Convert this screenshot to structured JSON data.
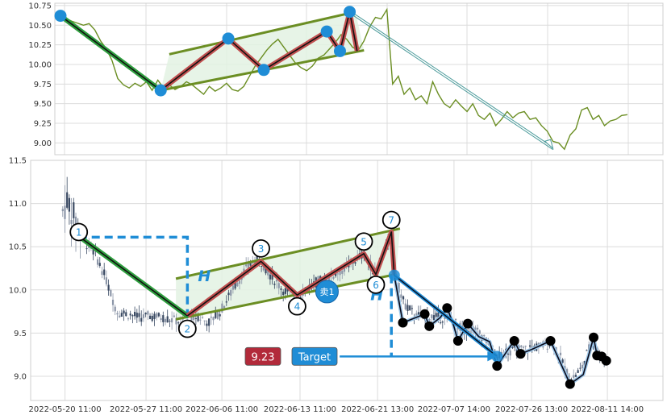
{
  "chart_data": [
    {
      "type": "line",
      "panel": "top-overview",
      "ylim": [
        8.85,
        10.78
      ],
      "yticks": [
        "10.75",
        "10.50",
        "10.25",
        "10.00",
        "9.75",
        "9.50",
        "9.25",
        "9.00"
      ],
      "ytick_values": [
        10.75,
        10.5,
        10.25,
        10.0,
        9.75,
        9.5,
        9.25,
        9.0
      ],
      "xlim": [
        0,
        100
      ],
      "grid": true,
      "colors": {
        "price": "#6b8e23",
        "channel": "#6b8e23",
        "channel_fill": "#e3f2e3",
        "zigzag": "#c05050",
        "downtrend": "#2e9e3e",
        "pivot": "#1f8dd6",
        "projection": "#4a9a9a"
      },
      "price_series": [
        [
          0,
          10.62
        ],
        [
          2,
          10.55
        ],
        [
          4,
          10.5
        ],
        [
          5,
          10.52
        ],
        [
          6,
          10.44
        ],
        [
          7,
          10.3
        ],
        [
          8,
          10.2
        ],
        [
          9,
          10.05
        ],
        [
          10,
          9.82
        ],
        [
          11,
          9.74
        ],
        [
          12,
          9.7
        ],
        [
          13,
          9.76
        ],
        [
          14,
          9.72
        ],
        [
          15,
          9.78
        ],
        [
          16,
          9.67
        ],
        [
          17,
          9.8
        ],
        [
          18,
          9.7
        ],
        [
          19,
          9.74
        ],
        [
          20,
          9.68
        ],
        [
          21,
          9.72
        ],
        [
          22,
          9.78
        ],
        [
          23,
          9.74
        ],
        [
          24,
          9.68
        ],
        [
          25,
          9.62
        ],
        [
          26,
          9.72
        ],
        [
          27,
          9.66
        ],
        [
          28,
          9.7
        ],
        [
          29,
          9.76
        ],
        [
          30,
          9.68
        ],
        [
          31,
          9.66
        ],
        [
          32,
          9.72
        ],
        [
          33,
          9.85
        ],
        [
          34,
          9.98
        ],
        [
          35,
          10.08
        ],
        [
          36,
          10.18
        ],
        [
          37,
          10.26
        ],
        [
          38,
          10.32
        ],
        [
          39,
          10.22
        ],
        [
          40,
          10.12
        ],
        [
          41,
          10.02
        ],
        [
          42,
          9.96
        ],
        [
          43,
          9.92
        ],
        [
          44,
          9.98
        ],
        [
          45,
          10.08
        ],
        [
          46,
          10.12
        ],
        [
          47,
          10.2
        ],
        [
          48,
          10.28
        ],
        [
          49,
          10.38
        ],
        [
          50,
          10.32
        ],
        [
          51,
          10.22
        ],
        [
          52,
          10.18
        ],
        [
          53,
          10.3
        ],
        [
          54,
          10.48
        ],
        [
          55,
          10.6
        ],
        [
          56,
          10.58
        ],
        [
          57,
          10.7
        ],
        [
          58,
          9.75
        ],
        [
          59,
          9.85
        ],
        [
          60,
          9.62
        ],
        [
          61,
          9.7
        ],
        [
          62,
          9.55
        ],
        [
          63,
          9.6
        ],
        [
          64,
          9.5
        ],
        [
          65,
          9.78
        ],
        [
          66,
          9.62
        ],
        [
          67,
          9.5
        ],
        [
          68,
          9.45
        ],
        [
          69,
          9.55
        ],
        [
          70,
          9.47
        ],
        [
          71,
          9.4
        ],
        [
          72,
          9.5
        ],
        [
          73,
          9.35
        ],
        [
          74,
          9.3
        ],
        [
          75,
          9.38
        ],
        [
          76,
          9.22
        ],
        [
          77,
          9.3
        ],
        [
          78,
          9.4
        ],
        [
          79,
          9.32
        ],
        [
          80,
          9.38
        ],
        [
          81,
          9.4
        ],
        [
          82,
          9.3
        ],
        [
          83,
          9.32
        ],
        [
          84,
          9.22
        ],
        [
          85,
          9.15
        ],
        [
          86,
          9.02
        ],
        [
          87,
          9.0
        ],
        [
          88,
          8.92
        ],
        [
          89,
          9.1
        ],
        [
          90,
          9.18
        ],
        [
          91,
          9.42
        ],
        [
          92,
          9.45
        ],
        [
          93,
          9.3
        ],
        [
          94,
          9.35
        ],
        [
          95,
          9.22
        ],
        [
          96,
          9.28
        ],
        [
          97,
          9.3
        ],
        [
          98,
          9.35
        ],
        [
          99,
          9.36
        ]
      ],
      "downtrend_line": [
        [
          0,
          10.62
        ],
        [
          17.5,
          9.67
        ]
      ],
      "zigzag": [
        [
          17.5,
          9.67
        ],
        [
          29.3,
          10.33
        ],
        [
          35.5,
          9.93
        ],
        [
          46.5,
          10.42
        ],
        [
          48.8,
          10.17
        ],
        [
          50.5,
          10.67
        ],
        [
          51.8,
          10.17
        ]
      ],
      "pivots": [
        [
          0,
          10.62
        ],
        [
          17.5,
          9.67
        ],
        [
          29.3,
          10.33
        ],
        [
          35.5,
          9.93
        ],
        [
          46.5,
          10.42
        ],
        [
          48.8,
          10.17
        ],
        [
          50.5,
          10.67
        ]
      ],
      "channel_upper": [
        [
          19,
          10.13
        ],
        [
          51.5,
          10.67
        ]
      ],
      "channel_lower": [
        [
          17.5,
          9.67
        ],
        [
          53,
          10.18
        ]
      ],
      "projection": [
        [
          50.7,
          10.66
        ],
        [
          86,
          8.93
        ]
      ]
    },
    {
      "type": "candlestick",
      "panel": "main-pattern",
      "ylim": [
        8.72,
        11.5
      ],
      "yticks": [
        "11.5",
        "11.0",
        "10.5",
        "10.0",
        "9.5",
        "9.0"
      ],
      "ytick_values": [
        11.5,
        11.0,
        10.5,
        10.0,
        9.5,
        9.0
      ],
      "x_tick_labels": [
        "2022-05-20 11:00",
        "2022-05-27 11:00",
        "2022-06-06 11:00",
        "2022-06-13 11:00",
        "2022-06-21 13:00",
        "2022-07-07 14:00",
        "2022-07-26 13:00",
        "2022-08-11 14:00"
      ],
      "x_tick_positions": [
        5,
        19.1,
        32.3,
        45.9,
        59.4,
        72.7,
        86.2,
        99.4
      ],
      "xlim": [
        0,
        105
      ],
      "grid": true,
      "colors": {
        "candle": "#3a4a63",
        "candle_light": "#8c96a8",
        "downtrend": "#2e9e3e",
        "zigzag": "#c05050",
        "channel": "#6b8e23",
        "channel_fill": "#e3f2e3",
        "projection": "#1f8dd6",
        "measure": "#1f8dd6",
        "target_arrow": "#1f8dd6",
        "post_path": "#0a0a1a",
        "post_marker": "#000000",
        "pivot_ring": "#000000",
        "pivot_label": "#1f8dd6",
        "price_badge": "#b22a3a",
        "target_badge": "#1f8dd6",
        "sell_badge": "#1f8dd6"
      },
      "pattern_points": [
        {
          "label": "1",
          "x": 7.4,
          "y": 10.67
        },
        {
          "label": "2",
          "x": 26.3,
          "y": 9.55
        },
        {
          "label": "3",
          "x": 39.1,
          "y": 10.48
        },
        {
          "label": "4",
          "x": 45.4,
          "y": 9.81
        },
        {
          "label": "5",
          "x": 57.0,
          "y": 10.56
        },
        {
          "label": "6",
          "x": 59.1,
          "y": 10.06
        },
        {
          "label": "7",
          "x": 61.8,
          "y": 10.81
        }
      ],
      "downtrend_line": [
        [
          7.4,
          10.62
        ],
        [
          26.3,
          9.7
        ]
      ],
      "zigzag": [
        [
          26.3,
          9.7
        ],
        [
          39.1,
          10.33
        ],
        [
          45.4,
          9.94
        ],
        [
          57.0,
          10.42
        ],
        [
          59.1,
          10.18
        ],
        [
          61.8,
          10.67
        ],
        [
          62.3,
          10.17
        ]
      ],
      "channel_upper": [
        [
          24.3,
          10.13
        ],
        [
          63.3,
          10.71
        ]
      ],
      "channel_lower": [
        [
          24.3,
          9.66
        ],
        [
          62.6,
          10.18
        ]
      ],
      "measure_box": {
        "x1": 7.4,
        "x2": 26.3,
        "top": 10.61,
        "bottom": 9.7
      },
      "measure_drop": {
        "x": 61.8,
        "top": 10.17,
        "bottom": 9.23
      },
      "h_labels": [
        "H",
        "H"
      ],
      "projection_line": [
        [
          62.3,
          10.17
        ],
        [
          80.2,
          9.23
        ]
      ],
      "price_badge": "9.23",
      "target_badge": "Target",
      "target_arrow": [
        [
          52.8,
          9.23
        ],
        [
          80.2,
          9.23
        ]
      ],
      "sell_badge": "卖1",
      "sell_point": [
        50.6,
        9.98
      ],
      "post_path": [
        [
          62.3,
          10.17
        ],
        [
          63.8,
          9.62
        ],
        [
          65.7,
          9.67
        ],
        [
          67.6,
          9.72
        ],
        [
          68.4,
          9.58
        ],
        [
          70.3,
          9.68
        ],
        [
          71.5,
          9.79
        ],
        [
          72.5,
          9.62
        ],
        [
          73.4,
          9.41
        ],
        [
          75.1,
          9.61
        ],
        [
          77.0,
          9.46
        ],
        [
          78.9,
          9.4
        ],
        [
          80.2,
          9.12
        ],
        [
          82.1,
          9.31
        ],
        [
          83.2,
          9.41
        ],
        [
          84.3,
          9.26
        ],
        [
          86.2,
          9.31
        ],
        [
          89.5,
          9.41
        ],
        [
          92.9,
          8.91
        ],
        [
          95.2,
          9.02
        ],
        [
          97.0,
          9.45
        ],
        [
          97.6,
          9.24
        ],
        [
          98.4,
          9.23
        ],
        [
          99.2,
          9.18
        ]
      ],
      "post_markers": [
        [
          63.8,
          9.62
        ],
        [
          67.6,
          9.72
        ],
        [
          68.4,
          9.58
        ],
        [
          71.5,
          9.79
        ],
        [
          73.4,
          9.41
        ],
        [
          75.1,
          9.61
        ],
        [
          80.2,
          9.12
        ],
        [
          83.2,
          9.41
        ],
        [
          84.3,
          9.26
        ],
        [
          89.5,
          9.41
        ],
        [
          92.9,
          8.91
        ],
        [
          97.0,
          9.45
        ],
        [
          97.6,
          9.24
        ],
        [
          98.4,
          9.23
        ],
        [
          99.2,
          9.18
        ]
      ]
    }
  ]
}
